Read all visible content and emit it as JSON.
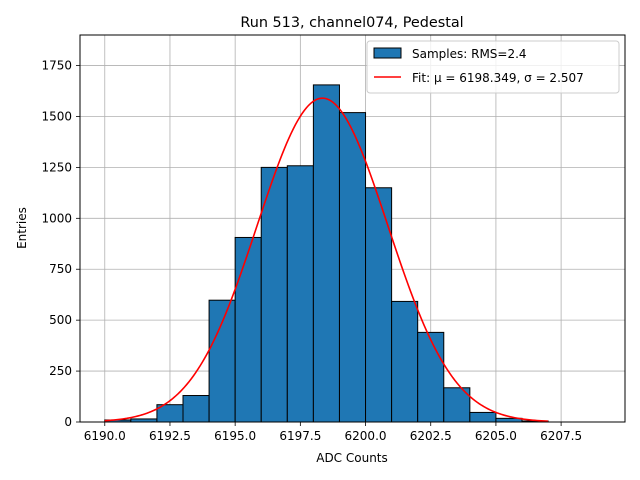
{
  "chart_data": {
    "type": "bar",
    "title": "Run 513, channel074, Pedestal",
    "xlabel": "ADC Counts",
    "ylabel": "Entries",
    "xlim": [
      6189.05,
      6209.95
    ],
    "ylim": [
      0,
      1900
    ],
    "xticks": [
      6190.0,
      6192.5,
      6195.0,
      6197.5,
      6200.0,
      6202.5,
      6205.0,
      6207.5
    ],
    "xtick_labels": [
      "6190.0",
      "6192.5",
      "6195.0",
      "6197.5",
      "6200.0",
      "6202.5",
      "6205.0",
      "6207.5"
    ],
    "yticks": [
      0,
      250,
      500,
      750,
      1000,
      1250,
      1500,
      1750
    ],
    "ytick_labels": [
      "0",
      "250",
      "500",
      "750",
      "1000",
      "1250",
      "1500",
      "1750"
    ],
    "grid": true,
    "legend_position": "top-right",
    "histogram": {
      "name": "Samples: RMS=2.4",
      "color": "#1f77b4",
      "edge_color": "#000000",
      "bin_edges": [
        6190,
        6191,
        6192,
        6193,
        6194,
        6195,
        6196,
        6197,
        6198,
        6199,
        6200,
        6201,
        6202,
        6203,
        6204,
        6205,
        6206,
        6207,
        6208,
        6209
      ],
      "counts": [
        10,
        15,
        85,
        130,
        598,
        906,
        1250,
        1258,
        1655,
        1519,
        1150,
        592,
        440,
        168,
        47,
        18,
        5,
        0,
        0
      ]
    },
    "fit": {
      "name_prefix": "Fit: ",
      "name_formula": "μ = 6198.349, σ = 2.507",
      "color": "#ff0000",
      "mu": 6198.349,
      "sigma": 2.507,
      "amplitude": 1590,
      "x_range": [
        6190,
        6207
      ]
    }
  }
}
